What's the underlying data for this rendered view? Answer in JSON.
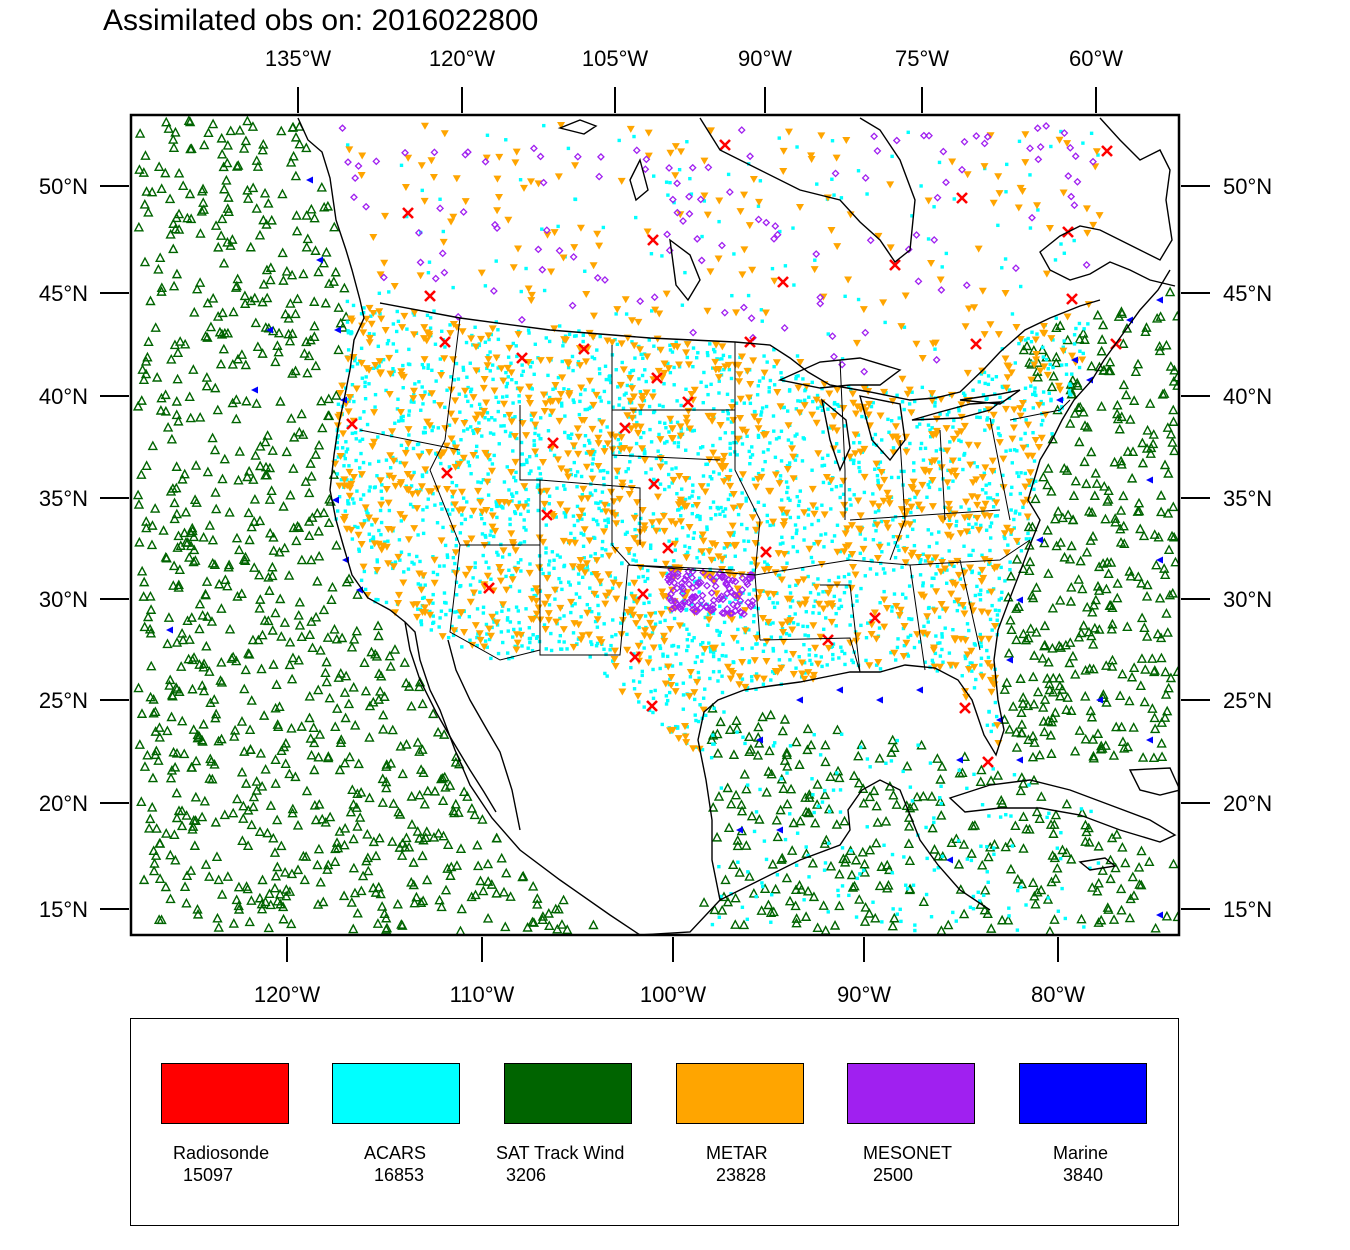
{
  "title": "Assimilated obs on: 2016022800",
  "top_axis": [
    "135°W",
    "120°W",
    "105°W",
    "90°W",
    "75°W",
    "60°W"
  ],
  "bottom_axis": [
    "120°W",
    "110°W",
    "100°W",
    "90°W",
    "80°W"
  ],
  "left_axis": [
    "50°N",
    "45°N",
    "40°N",
    "35°N",
    "30°N",
    "25°N",
    "20°N",
    "15°N"
  ],
  "right_axis": [
    "50°N",
    "45°N",
    "40°N",
    "35°N",
    "30°N",
    "25°N",
    "20°N",
    "15°N"
  ],
  "legend": [
    {
      "name": "Radiosonde",
      "count": "15097",
      "color": "#ff0000"
    },
    {
      "name": "ACARS",
      "count": "16853",
      "color": "#00ffff"
    },
    {
      "name": "SAT Track Wind",
      "count": "3206",
      "color": "#006400"
    },
    {
      "name": "METAR",
      "count": "23828",
      "color": "#ffa500"
    },
    {
      "name": "MESONET",
      "count": "2500",
      "color": "#a020f0"
    },
    {
      "name": "Marine",
      "count": "3840",
      "color": "#0000ff"
    }
  ]
}
